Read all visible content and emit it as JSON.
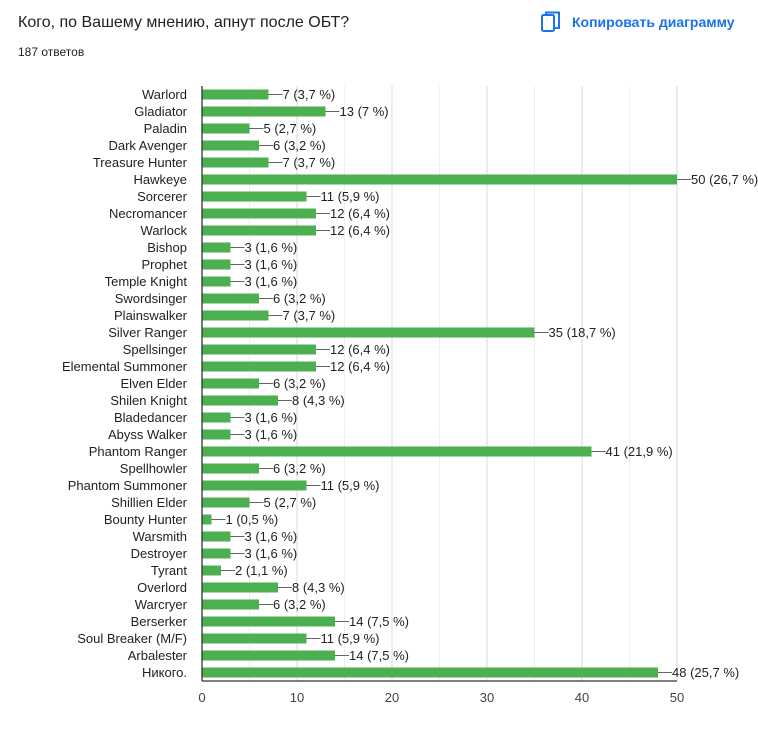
{
  "header": {
    "question": "Кого, по Вашему мнению, апнут после ОБТ?",
    "responses": "187 ответов",
    "copy_label": "Копировать диаграмму"
  },
  "colors": {
    "bar": "#4caf50",
    "accent": "#1a73e8",
    "grid": "#e0e0e0",
    "axis": "#333333"
  },
  "chart_data": {
    "type": "bar",
    "orientation": "horizontal",
    "title": "Кого, по Вашему мнению, апнут после ОБТ?",
    "xlim": [
      0,
      50
    ],
    "xticks": [
      0,
      10,
      20,
      30,
      40,
      50
    ],
    "categories": [
      "Warlord",
      "Gladiator",
      "Paladin",
      "Dark Avenger",
      "Treasure Hunter",
      "Hawkeye",
      "Sorcerer",
      "Necromancer",
      "Warlock",
      "Bishop",
      "Prophet",
      "Temple Knight",
      "Swordsinger",
      "Plainswalker",
      "Silver Ranger",
      "Spellsinger",
      "Elemental Summoner",
      "Elven Elder",
      "Shilen Knight",
      "Bladedancer",
      "Abyss Walker",
      "Phantom Ranger",
      "Spellhowler",
      "Phantom Summoner",
      "Shillien Elder",
      "Bounty Hunter",
      "Warsmith",
      "Destroyer",
      "Tyrant",
      "Overlord",
      "Warcryer",
      "Berserker",
      "Soul Breaker (M/F)",
      "Arbalester",
      "Никого."
    ],
    "values": [
      7,
      13,
      5,
      6,
      7,
      50,
      11,
      12,
      12,
      3,
      3,
      3,
      6,
      7,
      35,
      12,
      12,
      6,
      8,
      3,
      3,
      41,
      6,
      11,
      5,
      1,
      3,
      3,
      2,
      8,
      6,
      14,
      11,
      14,
      48
    ],
    "labels": [
      "7 (3,7 %)",
      "13 (7 %)",
      "5 (2,7 %)",
      "6 (3,2 %)",
      "7 (3,7 %)",
      "50 (26,7 %)",
      "11 (5,9 %)",
      "12 (6,4 %)",
      "12 (6,4 %)",
      "3 (1,6 %)",
      "3 (1,6 %)",
      "3 (1,6 %)",
      "6 (3,2 %)",
      "7 (3,7 %)",
      "35 (18,7 %)",
      "12 (6,4 %)",
      "12 (6,4 %)",
      "6 (3,2 %)",
      "8 (4,3 %)",
      "3 (1,6 %)",
      "3 (1,6 %)",
      "41 (21,9 %)",
      "6 (3,2 %)",
      "11 (5,9 %)",
      "5 (2,7 %)",
      "1 (0,5 %)",
      "3 (1,6 %)",
      "3 (1,6 %)",
      "2 (1,1 %)",
      "8 (4,3 %)",
      "6 (3,2 %)",
      "14 (7,5 %)",
      "11 (5,9 %)",
      "14 (7,5 %)",
      "48 (25,7 %)"
    ]
  }
}
